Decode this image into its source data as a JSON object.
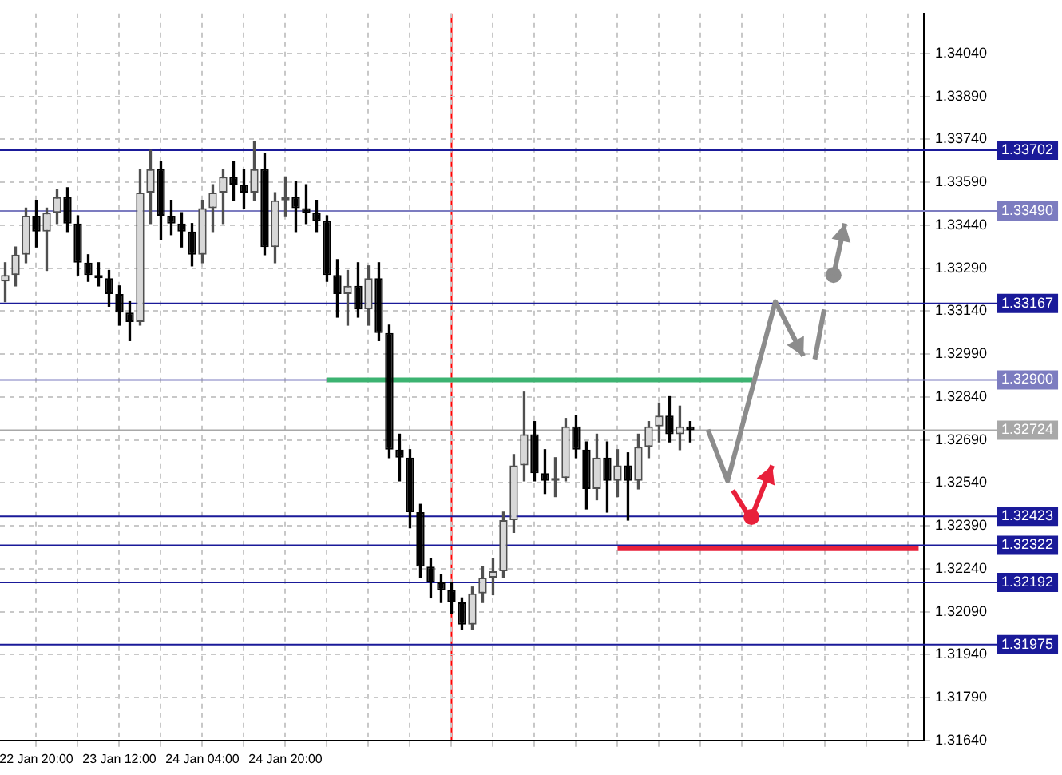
{
  "chart_data": {
    "type": "candlestick",
    "colors": [
      "#505050",
      "#505050",
      "#505050",
      "#000000",
      "#505050",
      "#505050",
      "#000000",
      "#000000",
      "#000000",
      "#000000",
      "#000000",
      "#000000",
      "#000000",
      "#505050",
      "#505050",
      "#000000",
      "#000000",
      "#000000",
      "#000000",
      "#505050",
      "#505050",
      "#505050",
      "#000000",
      "#000000",
      "#505050",
      "#000000",
      "#505050",
      "#505050",
      "#000000",
      "#000000",
      "#000000",
      "#000000",
      "#000000",
      "#505050",
      "#000000",
      "#505050",
      "#000000",
      "#000000",
      "#000000",
      "#000000",
      "#000000",
      "#000000",
      "#000000",
      "#000000",
      "#000000",
      "#505050",
      "#505050",
      "#505050",
      "#505050",
      "#505050",
      "#505050",
      "#000000",
      "#000000",
      "#505050",
      "#505050",
      "#000000",
      "#000000",
      "#505050",
      "#000000",
      "#505050",
      "#000000",
      "#505050",
      "#505050",
      "#505050",
      "#000000",
      "#505050",
      "#000000",
      null,
      null,
      null,
      null,
      null,
      null,
      null,
      null,
      null,
      null,
      null,
      null,
      null,
      null,
      null,
      null,
      null,
      null,
      null,
      null,
      null,
      null
    ],
    "categories": [
      null,
      null,
      null,
      "22 Jan 20:00",
      null,
      null,
      null,
      null,
      null,
      null,
      null,
      "23 Jan 12:00",
      null,
      null,
      null,
      null,
      null,
      null,
      null,
      "24 Jan 04:00",
      null,
      null,
      null,
      null,
      null,
      null,
      null,
      "24 Jan 20:00",
      null,
      null,
      null,
      null,
      null,
      null,
      null,
      null,
      null,
      null,
      null,
      null,
      null,
      null,
      null,
      null,
      null,
      null,
      null,
      null,
      null,
      null,
      null,
      null,
      null,
      null,
      null,
      null,
      null,
      null,
      null,
      null,
      null,
      null,
      null,
      null,
      null,
      null,
      null,
      null,
      null,
      null,
      null,
      null,
      null,
      null,
      null,
      null,
      null,
      null,
      null,
      null,
      null,
      null,
      null,
      null,
      null,
      null,
      null,
      null,
      null
    ],
    "ohlc": [
      [
        1.33244,
        1.33309,
        1.33173,
        1.33266
      ],
      [
        1.33266,
        1.33364,
        1.33228,
        1.33337
      ],
      [
        1.33337,
        1.335,
        1.33309,
        1.33473
      ],
      [
        1.33473,
        1.33527,
        1.33364,
        1.33418
      ],
      [
        1.33418,
        1.335,
        1.33282,
        1.33484
      ],
      [
        1.33484,
        1.33565,
        1.33446,
        1.33538
      ],
      [
        1.33538,
        1.33571,
        1.33418,
        1.33446
      ],
      [
        1.33446,
        1.33473,
        1.33266,
        1.33309
      ],
      [
        1.33309,
        1.33337,
        1.33244,
        1.33266
      ],
      [
        1.33266,
        1.33309,
        1.33228,
        1.33255
      ],
      [
        1.33255,
        1.33282,
        1.33157,
        1.332
      ],
      [
        1.332,
        1.33228,
        1.33091,
        1.33135
      ],
      [
        1.33135,
        1.33173,
        1.33037,
        1.33102
      ],
      [
        1.33102,
        1.33636,
        1.33091,
        1.33554
      ],
      [
        1.33554,
        1.33702,
        1.33446,
        1.33636
      ],
      [
        1.33636,
        1.33663,
        1.33391,
        1.33473
      ],
      [
        1.33473,
        1.33527,
        1.33407,
        1.33446
      ],
      [
        1.33446,
        1.33484,
        1.33364,
        1.33418
      ],
      [
        1.33418,
        1.33446,
        1.33298,
        1.33337
      ],
      [
        1.33337,
        1.33527,
        1.33309,
        1.335
      ],
      [
        1.335,
        1.33582,
        1.33418,
        1.33554
      ],
      [
        1.33554,
        1.33636,
        1.33446,
        1.33609
      ],
      [
        1.33609,
        1.33663,
        1.33527,
        1.33582
      ],
      [
        1.33582,
        1.33636,
        1.335,
        1.33554
      ],
      [
        1.33554,
        1.33734,
        1.33527,
        1.33636
      ],
      [
        1.33636,
        1.33691,
        1.33337,
        1.33364
      ],
      [
        1.33364,
        1.33554,
        1.33309,
        1.33527
      ],
      [
        1.33527,
        1.33609,
        1.33473,
        1.33538
      ],
      [
        1.33538,
        1.33593,
        1.33418,
        1.335
      ],
      [
        1.335,
        1.33582,
        1.33446,
        1.33484
      ],
      [
        1.33484,
        1.33527,
        1.33418,
        1.33456
      ],
      [
        1.33456,
        1.33473,
        1.33244,
        1.33266
      ],
      [
        1.33266,
        1.3332,
        1.33119,
        1.332
      ],
      [
        1.332,
        1.33282,
        1.33091,
        1.33228
      ],
      [
        1.33228,
        1.33309,
        1.33119,
        1.33146
      ],
      [
        1.33146,
        1.33298,
        1.33091,
        1.33255
      ],
      [
        1.33255,
        1.33309,
        1.33037,
        1.33064
      ],
      [
        1.33064,
        1.33091,
        1.32628,
        1.32656
      ],
      [
        1.32656,
        1.3271,
        1.32547,
        1.32628
      ],
      [
        1.32628,
        1.32656,
        1.32383,
        1.32438
      ],
      [
        1.32438,
        1.32465,
        1.32209,
        1.32247
      ],
      [
        1.32247,
        1.32274,
        1.32138,
        1.32192
      ],
      [
        1.32192,
        1.3222,
        1.32122,
        1.32165
      ],
      [
        1.32165,
        1.32192,
        1.32083,
        1.32122
      ],
      [
        1.32122,
        1.32138,
        1.32029,
        1.32045
      ],
      [
        1.32045,
        1.32176,
        1.32029,
        1.32154
      ],
      [
        1.32154,
        1.32247,
        1.32122,
        1.32209
      ],
      [
        1.32209,
        1.32274,
        1.32149,
        1.32231
      ],
      [
        1.32231,
        1.32438,
        1.32209,
        1.3241
      ],
      [
        1.3241,
        1.32639,
        1.32367,
        1.32601
      ],
      [
        1.32601,
        1.32857,
        1.32547,
        1.3271
      ],
      [
        1.3271,
        1.32754,
        1.32547,
        1.32574
      ],
      [
        1.32574,
        1.32656,
        1.32503,
        1.32547
      ],
      [
        1.32547,
        1.32628,
        1.32492,
        1.32557
      ],
      [
        1.32557,
        1.32765,
        1.32547,
        1.32737
      ],
      [
        1.32737,
        1.32775,
        1.32628,
        1.32656
      ],
      [
        1.32656,
        1.32683,
        1.32449,
        1.32519
      ],
      [
        1.32519,
        1.3271,
        1.32481,
        1.32628
      ],
      [
        1.32628,
        1.32683,
        1.32438,
        1.32547
      ],
      [
        1.32547,
        1.32656,
        1.32492,
        1.32601
      ],
      [
        1.32601,
        1.32645,
        1.3241,
        1.32547
      ],
      [
        1.32547,
        1.3271,
        1.32519,
        1.32666
      ],
      [
        1.32666,
        1.32754,
        1.32628,
        1.32737
      ],
      [
        1.32737,
        1.32819,
        1.32683,
        1.32775
      ],
      [
        1.32775,
        1.32841,
        1.32683,
        1.3271
      ],
      [
        1.3271,
        1.32808,
        1.32656,
        1.32737
      ],
      [
        1.32737,
        1.32754,
        1.32683,
        1.32724
      ],
      null,
      null,
      null,
      null,
      null,
      null,
      null,
      null,
      null,
      null,
      null,
      null,
      null,
      null,
      null,
      null,
      null,
      null,
      null,
      null,
      null,
      null
    ],
    "series": [
      {
        "type": "line",
        "color": "#3cb371",
        "values": [
          null,
          null,
          null,
          null,
          null,
          null,
          null,
          null,
          null,
          null,
          null,
          null,
          null,
          null,
          null,
          null,
          null,
          null,
          null,
          null,
          null,
          null,
          null,
          null,
          null,
          null,
          null,
          null,
          null,
          null,
          null,
          1.329,
          1.329,
          1.329,
          1.329,
          1.329,
          1.329,
          1.329,
          1.329,
          1.329,
          1.329,
          1.329,
          1.329,
          1.329,
          1.329,
          1.329,
          1.329,
          1.329,
          1.329,
          1.329,
          1.329,
          1.329,
          1.329,
          1.329,
          1.329,
          1.329,
          1.329,
          1.329,
          1.329,
          1.329,
          1.329,
          1.329,
          1.329,
          1.329,
          1.329,
          1.329,
          1.329,
          1.329,
          1.329,
          1.329,
          1.329,
          1.329,
          1.329,
          null,
          null,
          null,
          null,
          null,
          null,
          null,
          null,
          null,
          null,
          null,
          null,
          null,
          null,
          null,
          null
        ]
      },
      {
        "type": "line",
        "color": "#e8203a",
        "values": [
          null,
          null,
          null,
          null,
          null,
          null,
          null,
          null,
          null,
          null,
          null,
          null,
          null,
          null,
          null,
          null,
          null,
          null,
          null,
          null,
          null,
          null,
          null,
          null,
          null,
          null,
          null,
          null,
          null,
          null,
          null,
          null,
          null,
          null,
          null,
          null,
          null,
          null,
          null,
          null,
          null,
          null,
          null,
          null,
          null,
          null,
          null,
          null,
          null,
          null,
          null,
          null,
          null,
          null,
          null,
          null,
          null,
          null,
          null,
          1.3231,
          1.3231,
          1.3231,
          1.3231,
          1.3231,
          1.3231,
          1.3231,
          1.3231,
          1.3231,
          1.3231,
          1.3231,
          1.3231,
          1.3231,
          1.3231,
          1.3231,
          1.3231,
          1.3231,
          1.3231,
          1.3231,
          1.3231,
          1.3231,
          1.3231,
          1.3231,
          1.3231,
          1.3231,
          1.3231,
          1.3231,
          1.3231,
          1.3231,
          1.3231
        ]
      }
    ],
    "ylim": [
      1.3164,
      1.3418
    ],
    "yticks": [
      {
        "value": 1.3164,
        "label": "1.31640"
      },
      {
        "value": 1.3179,
        "label": "1.31790"
      },
      {
        "value": 1.3194,
        "label": "1.31940"
      },
      {
        "value": 1.3209,
        "label": "1.32090"
      },
      {
        "value": 1.3224,
        "label": "1.32240"
      },
      {
        "value": 1.3239,
        "label": "1.32390"
      },
      {
        "value": 1.3254,
        "label": "1.32540"
      },
      {
        "value": 1.3269,
        "label": "1.32690"
      },
      {
        "value": 1.3284,
        "label": "1.32840"
      },
      {
        "value": 1.3299,
        "label": "1.32990"
      },
      {
        "value": 1.3314,
        "label": "1.33140"
      },
      {
        "value": 1.3329,
        "label": "1.33290"
      },
      {
        "value": 1.3344,
        "label": "1.33440"
      },
      {
        "value": 1.3359,
        "label": "1.33590"
      },
      {
        "value": 1.3374,
        "label": "1.33740"
      },
      {
        "value": 1.3389,
        "label": "1.33890"
      },
      {
        "value": 1.3404,
        "label": "1.34040"
      }
    ],
    "grid": true,
    "ref_lines": [
      {
        "axis": "y",
        "value": 1.33702,
        "label": "1.33702",
        "color": "#1a1a99"
      },
      {
        "axis": "y",
        "value": 1.3349,
        "label": "1.33490",
        "color": "#7c7cc0"
      },
      {
        "axis": "y",
        "value": 1.33167,
        "label": "1.33167",
        "color": "#1a1a99"
      },
      {
        "axis": "y",
        "value": 1.329,
        "label": "1.32900",
        "color": "#7c7cc0"
      },
      {
        "axis": "y",
        "value": 1.32724,
        "label": "1.32724",
        "color": "#a8a8a8"
      },
      {
        "axis": "y",
        "value": 1.32423,
        "label": "1.32423",
        "color": "#1a1a99"
      },
      {
        "axis": "y",
        "value": 1.32322,
        "label": "1.32322",
        "color": "#1a1a99"
      },
      {
        "axis": "y",
        "value": 1.32192,
        "label": "1.32192",
        "color": "#1a1a99"
      },
      {
        "axis": "y",
        "value": 1.31975,
        "label": "1.31975",
        "color": "#1a1a99"
      }
    ]
  }
}
